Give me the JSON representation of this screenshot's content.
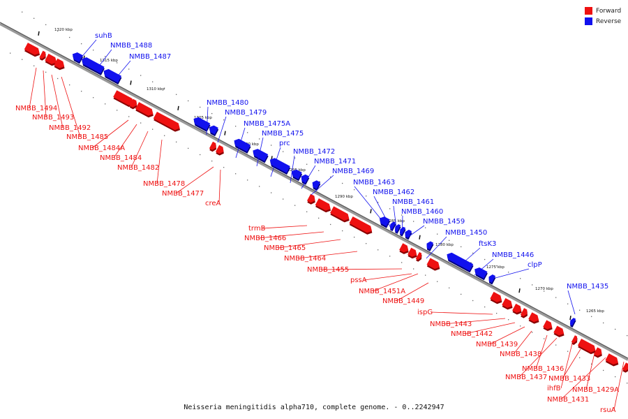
{
  "caption": "Neisseria meningitidis alpha710, complete genome. - 0..2242947",
  "legend": [
    {
      "label": "Forward",
      "color": "#ee1111"
    },
    {
      "label": "Reverse",
      "color": "#1111ee"
    }
  ],
  "ticks": [
    "1320 kbp",
    "1315 kbp",
    "1310 kbp",
    "1305 kbp",
    "1300 kbp",
    "1295 kbp",
    "1290 kbp",
    "1285 kbp",
    "1280 kbp",
    "1275 kbp",
    "1270 kbp",
    "1265 kbp"
  ],
  "genes": [
    {
      "name": "NMBB_1494",
      "strand": "forward"
    },
    {
      "name": "NMBB_1493",
      "strand": "forward"
    },
    {
      "name": "NMBB_1492",
      "strand": "forward"
    },
    {
      "name": "suhB",
      "strand": "reverse"
    },
    {
      "name": "NMBB_1488",
      "strand": "reverse"
    },
    {
      "name": "NMBB_1487",
      "strand": "reverse"
    },
    {
      "name": "NMBB_1485",
      "strand": "forward"
    },
    {
      "name": "NMBB_1484A",
      "strand": "forward"
    },
    {
      "name": "NMBB_1484",
      "strand": "forward"
    },
    {
      "name": "NMBB_1482",
      "strand": "forward"
    },
    {
      "name": "NMBB_1480",
      "strand": "reverse"
    },
    {
      "name": "NMBB_1479",
      "strand": "reverse"
    },
    {
      "name": "NMBB_1478",
      "strand": "forward"
    },
    {
      "name": "NMBB_1477",
      "strand": "forward"
    },
    {
      "name": "creA",
      "strand": "forward"
    },
    {
      "name": "NMBB_1475A",
      "strand": "reverse"
    },
    {
      "name": "NMBB_1475",
      "strand": "reverse"
    },
    {
      "name": "prc",
      "strand": "reverse"
    },
    {
      "name": "NMBB_1472",
      "strand": "reverse"
    },
    {
      "name": "NMBB_1471",
      "strand": "reverse"
    },
    {
      "name": "NMBB_1469",
      "strand": "reverse"
    },
    {
      "name": "trmB",
      "strand": "forward"
    },
    {
      "name": "NMBB_1466",
      "strand": "forward"
    },
    {
      "name": "NMBB_1465",
      "strand": "forward"
    },
    {
      "name": "NMBB_1464",
      "strand": "forward"
    },
    {
      "name": "NMBB_1463",
      "strand": "reverse"
    },
    {
      "name": "NMBB_1462",
      "strand": "reverse"
    },
    {
      "name": "NMBB_1461",
      "strand": "reverse"
    },
    {
      "name": "NMBB_1460",
      "strand": "reverse"
    },
    {
      "name": "NMBB_1459",
      "strand": "reverse"
    },
    {
      "name": "NMBB_1455",
      "strand": "forward"
    },
    {
      "name": "pssA",
      "strand": "forward"
    },
    {
      "name": "NMBB_1451A",
      "strand": "forward"
    },
    {
      "name": "NMBB_1450",
      "strand": "reverse"
    },
    {
      "name": "NMBB_1449",
      "strand": "forward"
    },
    {
      "name": "ftsK3",
      "strand": "reverse"
    },
    {
      "name": "NMBB_1446",
      "strand": "reverse"
    },
    {
      "name": "clpP",
      "strand": "reverse"
    },
    {
      "name": "ispG",
      "strand": "forward"
    },
    {
      "name": "NMBB_1443",
      "strand": "forward"
    },
    {
      "name": "NMBB_1442",
      "strand": "forward"
    },
    {
      "name": "NMBB_1439",
      "strand": "forward"
    },
    {
      "name": "NMBB_1438",
      "strand": "forward"
    },
    {
      "name": "NMBB_1435",
      "strand": "reverse"
    },
    {
      "name": "NMBB_1436",
      "strand": "forward"
    },
    {
      "name": "NMBB_1437",
      "strand": "forward"
    },
    {
      "name": "ihfB",
      "strand": "forward"
    },
    {
      "name": "NMBB_1433",
      "strand": "forward"
    },
    {
      "name": "NMBB_1429A",
      "strand": "forward"
    },
    {
      "name": "NMBB_1431",
      "strand": "forward"
    },
    {
      "name": "rsuA",
      "strand": "forward"
    }
  ]
}
